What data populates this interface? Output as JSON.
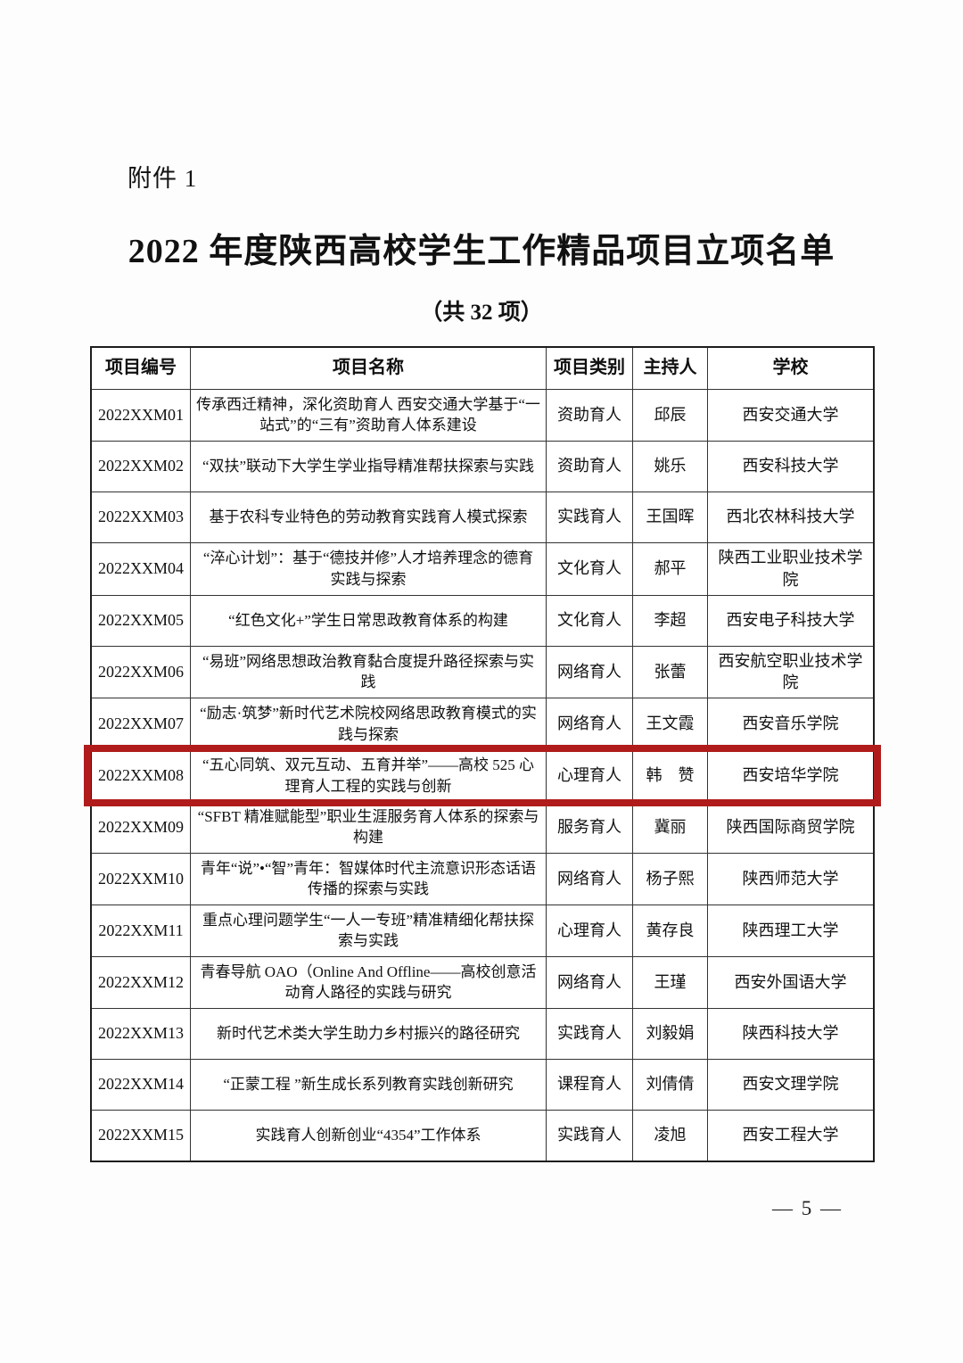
{
  "page": {
    "attachment_label": "附件 1",
    "title": "2022 年度陕西高校学生工作精品项目立项名单",
    "subtitle": "（共 32 项）",
    "page_number": "— 5 —"
  },
  "table": {
    "columns": [
      "项目编号",
      "项目名称",
      "项目类别",
      "主持人",
      "学校"
    ],
    "highlight_color": "#b01c1c",
    "rows": [
      {
        "no": "2022XXM01",
        "name": "传承西迁精神，深化资助育人 西安交通大学基于“一站式”的“三有”资助育人体系建设",
        "category": "资助育人",
        "leader": "邱辰",
        "school": "西安交通大学",
        "highlighted": false
      },
      {
        "no": "2022XXM02",
        "name": "“双扶”联动下大学生学业指导精准帮扶探索与实践",
        "category": "资助育人",
        "leader": "姚乐",
        "school": "西安科技大学",
        "highlighted": false
      },
      {
        "no": "2022XXM03",
        "name": "基于农科专业特色的劳动教育实践育人模式探索",
        "category": "实践育人",
        "leader": "王国晖",
        "school": "西北农林科技大学",
        "highlighted": false
      },
      {
        "no": "2022XXM04",
        "name": "“淬心计划”：基于“德技并修”人才培养理念的德育实践与探索",
        "category": "文化育人",
        "leader": "郝平",
        "school": "陕西工业职业技术学院",
        "highlighted": false
      },
      {
        "no": "2022XXM05",
        "name": "“红色文化+”学生日常思政教育体系的构建",
        "category": "文化育人",
        "leader": "李超",
        "school": "西安电子科技大学",
        "highlighted": false
      },
      {
        "no": "2022XXM06",
        "name": "“易班”网络思想政治教育黏合度提升路径探索与实践",
        "category": "网络育人",
        "leader": "张蕾",
        "school": "西安航空职业技术学院",
        "highlighted": false
      },
      {
        "no": "2022XXM07",
        "name": "“励志·筑梦”新时代艺术院校网络思政教育模式的实践与探索",
        "category": "网络育人",
        "leader": "王文霞",
        "school": "西安音乐学院",
        "highlighted": false
      },
      {
        "no": "2022XXM08",
        "name": "“五心同筑、双元互动、五育并举”——高校 525 心理育人工程的实践与创新",
        "category": "心理育人",
        "leader": "韩　赞",
        "school": "西安培华学院",
        "highlighted": true
      },
      {
        "no": "2022XXM09",
        "name": "“SFBT 精准赋能型”职业生涯服务育人体系的探索与构建",
        "category": "服务育人",
        "leader": "冀丽",
        "school": "陕西国际商贸学院",
        "highlighted": false
      },
      {
        "no": "2022XXM10",
        "name": "青年“说”•“智”青年：智媒体时代主流意识形态话语传播的探索与实践",
        "category": "网络育人",
        "leader": "杨子熙",
        "school": "陕西师范大学",
        "highlighted": false
      },
      {
        "no": "2022XXM11",
        "name": "重点心理问题学生“一人一专班”精准精细化帮扶探索与实践",
        "category": "心理育人",
        "leader": "黄存良",
        "school": "陕西理工大学",
        "highlighted": false
      },
      {
        "no": "2022XXM12",
        "name": "青春导航 OAO（Online And Offline——高校创意活动育人路径的实践与研究",
        "category": "网络育人",
        "leader": "王瑾",
        "school": "西安外国语大学",
        "highlighted": false
      },
      {
        "no": "2022XXM13",
        "name": "新时代艺术类大学生助力乡村振兴的路径研究",
        "category": "实践育人",
        "leader": "刘毅娟",
        "school": "陕西科技大学",
        "highlighted": false
      },
      {
        "no": "2022XXM14",
        "name": "“正蒙工程 ”新生成长系列教育实践创新研究",
        "category": "课程育人",
        "leader": "刘倩倩",
        "school": "西安文理学院",
        "highlighted": false
      },
      {
        "no": "2022XXM15",
        "name": "实践育人创新创业“4354”工作体系",
        "category": "实践育人",
        "leader": "凌旭",
        "school": "西安工程大学",
        "highlighted": false
      }
    ]
  }
}
